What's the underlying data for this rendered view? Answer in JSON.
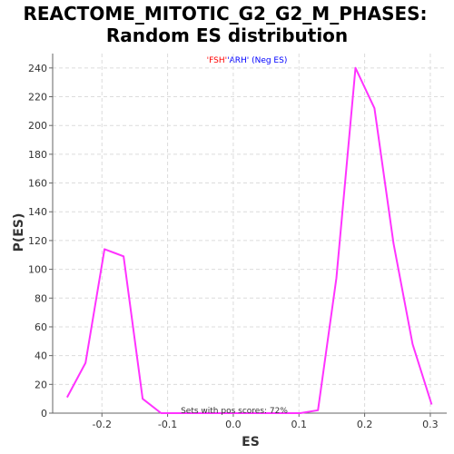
{
  "chart_data": {
    "type": "line",
    "title_lines": [
      "REACTOME_MITOTIC_G2_G2_M_PHASES:",
      "Random ES distribution"
    ],
    "subtitle": {
      "pos": "'FSH'",
      "neg": "'ARH' (Neg ES)"
    },
    "xlabel": "ES",
    "ylabel": "P(ES)",
    "xlim": [
      -0.275,
      0.325
    ],
    "ylim": [
      0,
      250
    ],
    "x_ticks": [
      -0.2,
      -0.1,
      0.0,
      0.1,
      0.2,
      0.3
    ],
    "x_tick_labels": [
      "-0.2",
      "-0.1",
      "0.0",
      "0.1",
      "0.2",
      "0.3"
    ],
    "y_ticks": [
      0,
      20,
      40,
      60,
      80,
      100,
      120,
      140,
      160,
      180,
      200,
      220,
      240
    ],
    "y_tick_labels": [
      "0",
      "20",
      "40",
      "60",
      "80",
      "100",
      "120",
      "140",
      "160",
      "180",
      "200",
      "220",
      "240"
    ],
    "grid": true,
    "annotation": "Sets with pos scores: 72%",
    "colors": {
      "line": "#ff33ff",
      "pos": "#ff0000",
      "neg": "#0000ff"
    },
    "series": [
      {
        "x": [
          -0.253,
          -0.225,
          -0.196,
          -0.167,
          -0.138,
          -0.11,
          -0.081,
          0.102,
          0.129,
          0.157,
          0.186,
          0.215,
          0.244,
          0.273,
          0.302
        ],
        "y": [
          11,
          35,
          114,
          109,
          10,
          0,
          0,
          0,
          2,
          94,
          240,
          212,
          118,
          48,
          6
        ]
      }
    ]
  }
}
